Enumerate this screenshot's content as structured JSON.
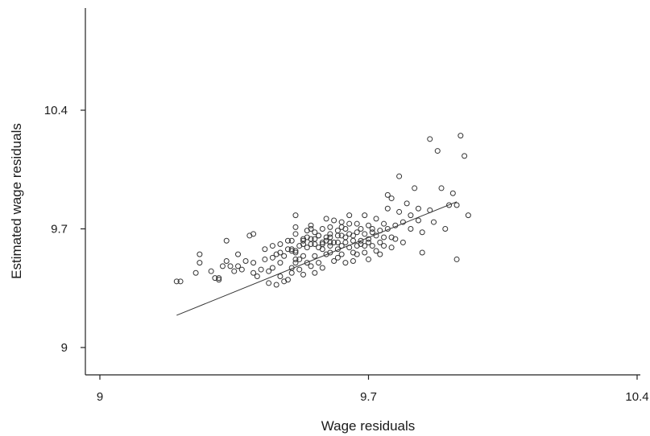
{
  "chart_data": {
    "type": "scatter",
    "title": "",
    "xlabel": "Wage residuals",
    "ylabel": "Estimated wage residuals",
    "xlim": [
      9,
      10.4
    ],
    "ylim": [
      9,
      10.4
    ],
    "x_ticks": [
      9,
      9.7,
      10.4
    ],
    "y_ticks": [
      9,
      9.7,
      10.4
    ],
    "x_tick_labels": [
      "9",
      "9.7",
      "10.4"
    ],
    "y_tick_labels": [
      "9",
      "9.7",
      "10.4"
    ],
    "grid": false,
    "legend": "none",
    "fit_line": {
      "x": [
        9.2,
        9.93
      ],
      "y": [
        9.19,
        9.86
      ]
    },
    "series": [
      {
        "marker": "open-circle",
        "points": [
          [
            9.2,
            9.39
          ],
          [
            9.21,
            9.39
          ],
          [
            9.25,
            9.44
          ],
          [
            9.26,
            9.5
          ],
          [
            9.26,
            9.55
          ],
          [
            9.29,
            9.45
          ],
          [
            9.3,
            9.41
          ],
          [
            9.31,
            9.41
          ],
          [
            9.31,
            9.4
          ],
          [
            9.32,
            9.48
          ],
          [
            9.33,
            9.63
          ],
          [
            9.33,
            9.51
          ],
          [
            9.34,
            9.48
          ],
          [
            9.35,
            9.45
          ],
          [
            9.36,
            9.48
          ],
          [
            9.37,
            9.46
          ],
          [
            9.38,
            9.51
          ],
          [
            9.39,
            9.66
          ],
          [
            9.4,
            9.67
          ],
          [
            9.4,
            9.5
          ],
          [
            9.4,
            9.44
          ],
          [
            9.41,
            9.42
          ],
          [
            9.42,
            9.46
          ],
          [
            9.43,
            9.58
          ],
          [
            9.44,
            9.38
          ],
          [
            9.44,
            9.45
          ],
          [
            9.45,
            9.53
          ],
          [
            9.45,
            9.6
          ],
          [
            9.45,
            9.47
          ],
          [
            9.46,
            9.37
          ],
          [
            9.47,
            9.5
          ],
          [
            9.47,
            9.61
          ],
          [
            9.47,
            9.56
          ],
          [
            9.47,
            9.42
          ],
          [
            9.48,
            9.54
          ],
          [
            9.48,
            9.39
          ],
          [
            9.49,
            9.58
          ],
          [
            9.49,
            9.63
          ],
          [
            9.49,
            9.4
          ],
          [
            9.5,
            9.57
          ],
          [
            9.5,
            9.47
          ],
          [
            9.5,
            9.44
          ],
          [
            9.5,
            9.58
          ],
          [
            9.5,
            9.63
          ],
          [
            9.51,
            9.67
          ],
          [
            9.51,
            9.56
          ],
          [
            9.51,
            9.52
          ],
          [
            9.51,
            9.5
          ],
          [
            9.51,
            9.78
          ],
          [
            9.51,
            9.71
          ],
          [
            9.51,
            9.57
          ],
          [
            9.52,
            9.6
          ],
          [
            9.52,
            9.52
          ],
          [
            9.52,
            9.46
          ],
          [
            9.53,
            9.61
          ],
          [
            9.53,
            9.54
          ],
          [
            9.53,
            9.43
          ],
          [
            9.53,
            9.64
          ],
          [
            9.54,
            9.65
          ],
          [
            9.54,
            9.59
          ],
          [
            9.54,
            9.69
          ],
          [
            9.54,
            9.5
          ],
          [
            9.55,
            9.61
          ],
          [
            9.55,
            9.48
          ],
          [
            9.55,
            9.64
          ],
          [
            9.55,
            9.72
          ],
          [
            9.56,
            9.54
          ],
          [
            9.56,
            9.64
          ],
          [
            9.56,
            9.44
          ],
          [
            9.56,
            9.68
          ],
          [
            9.56,
            9.61
          ],
          [
            9.57,
            9.5
          ],
          [
            9.57,
            9.66
          ],
          [
            9.57,
            9.59
          ],
          [
            9.57,
            9.66
          ],
          [
            9.58,
            9.61
          ],
          [
            9.58,
            9.47
          ],
          [
            9.58,
            9.7
          ],
          [
            9.58,
            9.62
          ],
          [
            9.59,
            9.65
          ],
          [
            9.59,
            9.63
          ],
          [
            9.59,
            9.55
          ],
          [
            9.59,
            9.76
          ],
          [
            9.6,
            9.56
          ],
          [
            9.6,
            9.67
          ],
          [
            9.6,
            9.62
          ],
          [
            9.6,
            9.71
          ],
          [
            9.6,
            9.65
          ],
          [
            9.61,
            9.51
          ],
          [
            9.61,
            9.62
          ],
          [
            9.61,
            9.75
          ],
          [
            9.62,
            9.66
          ],
          [
            9.62,
            9.53
          ],
          [
            9.62,
            9.62
          ],
          [
            9.62,
            9.69
          ],
          [
            9.63,
            9.6
          ],
          [
            9.63,
            9.66
          ],
          [
            9.63,
            9.74
          ],
          [
            9.63,
            9.71
          ],
          [
            9.63,
            9.55
          ],
          [
            9.64,
            9.65
          ],
          [
            9.64,
            9.5
          ],
          [
            9.64,
            9.62
          ],
          [
            9.64,
            9.7
          ],
          [
            9.65,
            9.59
          ],
          [
            9.65,
            9.67
          ],
          [
            9.65,
            9.78
          ],
          [
            9.65,
            9.73
          ],
          [
            9.66,
            9.56
          ],
          [
            9.66,
            9.66
          ],
          [
            9.66,
            9.51
          ],
          [
            9.67,
            9.6
          ],
          [
            9.67,
            9.68
          ],
          [
            9.67,
            9.73
          ],
          [
            9.67,
            9.55
          ],
          [
            9.68,
            9.63
          ],
          [
            9.68,
            9.61
          ],
          [
            9.68,
            9.7
          ],
          [
            9.69,
            9.67
          ],
          [
            9.69,
            9.56
          ],
          [
            9.69,
            9.78
          ],
          [
            9.7,
            9.64
          ],
          [
            9.7,
            9.62
          ],
          [
            9.7,
            9.72
          ],
          [
            9.7,
            9.52
          ],
          [
            9.71,
            9.7
          ],
          [
            9.71,
            9.68
          ],
          [
            9.71,
            9.6
          ],
          [
            9.72,
            9.66
          ],
          [
            9.72,
            9.57
          ],
          [
            9.72,
            9.76
          ],
          [
            9.73,
            9.69
          ],
          [
            9.73,
            9.62
          ],
          [
            9.73,
            9.55
          ],
          [
            9.74,
            9.73
          ],
          [
            9.74,
            9.65
          ],
          [
            9.74,
            9.6
          ],
          [
            9.75,
            9.9
          ],
          [
            9.75,
            9.82
          ],
          [
            9.75,
            9.7
          ],
          [
            9.76,
            9.88
          ],
          [
            9.76,
            9.65
          ],
          [
            9.76,
            9.59
          ],
          [
            9.77,
            9.72
          ],
          [
            9.77,
            9.64
          ],
          [
            9.78,
            9.8
          ],
          [
            9.78,
            10.01
          ],
          [
            9.79,
            9.62
          ],
          [
            9.79,
            9.74
          ],
          [
            9.8,
            9.85
          ],
          [
            9.81,
            9.7
          ],
          [
            9.81,
            9.78
          ],
          [
            9.82,
            9.94
          ],
          [
            9.83,
            9.75
          ],
          [
            9.83,
            9.82
          ],
          [
            9.84,
            9.68
          ],
          [
            9.84,
            9.56
          ],
          [
            9.86,
            9.81
          ],
          [
            9.86,
            10.23
          ],
          [
            9.87,
            9.74
          ],
          [
            9.88,
            10.16
          ],
          [
            9.89,
            9.94
          ],
          [
            9.9,
            9.7
          ],
          [
            9.91,
            9.84
          ],
          [
            9.92,
            9.91
          ],
          [
            9.93,
            9.52
          ],
          [
            9.93,
            9.84
          ],
          [
            9.94,
            10.25
          ],
          [
            9.95,
            10.13
          ],
          [
            9.96,
            9.78
          ],
          [
            9.53,
            9.63
          ],
          [
            9.58,
            9.58
          ],
          [
            9.62,
            9.58
          ],
          [
            9.66,
            9.63
          ],
          [
            9.69,
            9.6
          ],
          [
            9.43,
            9.52
          ],
          [
            9.46,
            9.55
          ],
          [
            9.36,
            9.55
          ],
          [
            9.55,
            9.7
          ],
          [
            9.6,
            9.6
          ]
        ]
      }
    ]
  }
}
